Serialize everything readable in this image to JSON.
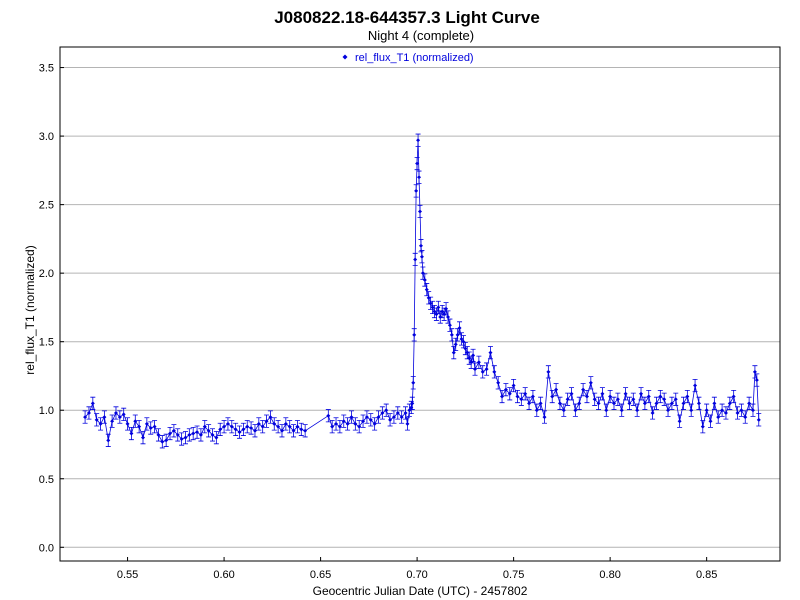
{
  "chart_data": {
    "type": "scatter",
    "title": "J080822.18-644357.3 Light Curve",
    "subtitle": "Night 4 (complete)",
    "xlabel": "Geocentric Julian Date (UTC) - 2457802",
    "ylabel": "rel_flux_T1 (normalized)",
    "xlim": [
      0.515,
      0.888
    ],
    "ylim": [
      -0.1,
      3.65
    ],
    "xticks": [
      "0.55",
      "0.60",
      "0.65",
      "0.70",
      "0.75",
      "0.80",
      "0.85"
    ],
    "yticks": [
      "0.0",
      "0.5",
      "1.0",
      "1.5",
      "2.0",
      "2.5",
      "3.0",
      "3.5"
    ],
    "grid": "horizontal",
    "legend_position": "top-center",
    "series": [
      {
        "name": "rel_flux_T1 (normalized)",
        "color": "#0000dd",
        "marker": "diamond",
        "line": true,
        "error_bar": 0.045,
        "points": [
          [
            0.528,
            0.95
          ],
          [
            0.53,
            0.98
          ],
          [
            0.532,
            1.05
          ],
          [
            0.534,
            0.93
          ],
          [
            0.536,
            0.9
          ],
          [
            0.538,
            0.95
          ],
          [
            0.54,
            0.78
          ],
          [
            0.542,
            0.92
          ],
          [
            0.544,
            0.98
          ],
          [
            0.546,
            0.95
          ],
          [
            0.548,
            0.97
          ],
          [
            0.55,
            0.9
          ],
          [
            0.552,
            0.83
          ],
          [
            0.554,
            0.92
          ],
          [
            0.556,
            0.88
          ],
          [
            0.558,
            0.8
          ],
          [
            0.56,
            0.9
          ],
          [
            0.562,
            0.87
          ],
          [
            0.564,
            0.88
          ],
          [
            0.566,
            0.82
          ],
          [
            0.568,
            0.77
          ],
          [
            0.57,
            0.78
          ],
          [
            0.572,
            0.83
          ],
          [
            0.574,
            0.85
          ],
          [
            0.576,
            0.82
          ],
          [
            0.578,
            0.79
          ],
          [
            0.58,
            0.8
          ],
          [
            0.582,
            0.82
          ],
          [
            0.584,
            0.83
          ],
          [
            0.586,
            0.84
          ],
          [
            0.588,
            0.82
          ],
          [
            0.59,
            0.88
          ],
          [
            0.592,
            0.85
          ],
          [
            0.594,
            0.82
          ],
          [
            0.596,
            0.8
          ],
          [
            0.598,
            0.86
          ],
          [
            0.6,
            0.88
          ],
          [
            0.602,
            0.9
          ],
          [
            0.604,
            0.88
          ],
          [
            0.606,
            0.86
          ],
          [
            0.608,
            0.84
          ],
          [
            0.61,
            0.86
          ],
          [
            0.612,
            0.88
          ],
          [
            0.614,
            0.87
          ],
          [
            0.616,
            0.85
          ],
          [
            0.618,
            0.9
          ],
          [
            0.62,
            0.88
          ],
          [
            0.622,
            0.92
          ],
          [
            0.624,
            0.95
          ],
          [
            0.626,
            0.9
          ],
          [
            0.628,
            0.88
          ],
          [
            0.63,
            0.85
          ],
          [
            0.632,
            0.9
          ],
          [
            0.634,
            0.88
          ],
          [
            0.636,
            0.85
          ],
          [
            0.638,
            0.88
          ],
          [
            0.64,
            0.86
          ],
          [
            0.642,
            0.85
          ],
          [
            0.654,
            0.96
          ],
          [
            0.656,
            0.88
          ],
          [
            0.658,
            0.9
          ],
          [
            0.66,
            0.88
          ],
          [
            0.662,
            0.92
          ],
          [
            0.664,
            0.9
          ],
          [
            0.666,
            0.95
          ],
          [
            0.668,
            0.9
          ],
          [
            0.67,
            0.88
          ],
          [
            0.672,
            0.92
          ],
          [
            0.674,
            0.95
          ],
          [
            0.676,
            0.93
          ],
          [
            0.678,
            0.9
          ],
          [
            0.68,
            0.95
          ],
          [
            0.682,
            0.98
          ],
          [
            0.684,
            1.0
          ],
          [
            0.686,
            0.93
          ],
          [
            0.688,
            0.95
          ],
          [
            0.69,
            0.98
          ],
          [
            0.692,
            0.95
          ],
          [
            0.694,
            0.98
          ],
          [
            0.695,
            0.9
          ],
          [
            0.696,
            1.0
          ],
          [
            0.697,
            1.02
          ],
          [
            0.6975,
            1.05
          ],
          [
            0.698,
            1.2
          ],
          [
            0.6985,
            1.55
          ],
          [
            0.699,
            2.1
          ],
          [
            0.6995,
            2.6
          ],
          [
            0.7,
            2.8
          ],
          [
            0.7005,
            2.97
          ],
          [
            0.701,
            2.7
          ],
          [
            0.7015,
            2.45
          ],
          [
            0.702,
            2.2
          ],
          [
            0.7025,
            2.12
          ],
          [
            0.703,
            2.0
          ],
          [
            0.704,
            1.95
          ],
          [
            0.705,
            1.88
          ],
          [
            0.706,
            1.82
          ],
          [
            0.707,
            1.78
          ],
          [
            0.708,
            1.75
          ],
          [
            0.709,
            1.72
          ],
          [
            0.71,
            1.7
          ],
          [
            0.711,
            1.75
          ],
          [
            0.712,
            1.68
          ],
          [
            0.713,
            1.72
          ],
          [
            0.714,
            1.7
          ],
          [
            0.715,
            1.74
          ],
          [
            0.716,
            1.68
          ],
          [
            0.717,
            1.62
          ],
          [
            0.718,
            1.55
          ],
          [
            0.719,
            1.42
          ],
          [
            0.72,
            1.48
          ],
          [
            0.721,
            1.55
          ],
          [
            0.722,
            1.6
          ],
          [
            0.723,
            1.52
          ],
          [
            0.724,
            1.5
          ],
          [
            0.725,
            1.45
          ],
          [
            0.726,
            1.42
          ],
          [
            0.727,
            1.38
          ],
          [
            0.728,
            1.35
          ],
          [
            0.729,
            1.4
          ],
          [
            0.73,
            1.3
          ],
          [
            0.732,
            1.35
          ],
          [
            0.734,
            1.28
          ],
          [
            0.736,
            1.3
          ],
          [
            0.738,
            1.42
          ],
          [
            0.74,
            1.28
          ],
          [
            0.742,
            1.2
          ],
          [
            0.744,
            1.1
          ],
          [
            0.746,
            1.15
          ],
          [
            0.748,
            1.12
          ],
          [
            0.75,
            1.18
          ],
          [
            0.752,
            1.1
          ],
          [
            0.754,
            1.08
          ],
          [
            0.756,
            1.12
          ],
          [
            0.758,
            1.05
          ],
          [
            0.76,
            1.1
          ],
          [
            0.762,
            1.0
          ],
          [
            0.764,
            1.05
          ],
          [
            0.766,
            0.95
          ],
          [
            0.768,
            1.28
          ],
          [
            0.77,
            1.1
          ],
          [
            0.772,
            1.15
          ],
          [
            0.774,
            1.05
          ],
          [
            0.776,
            1.0
          ],
          [
            0.778,
            1.08
          ],
          [
            0.78,
            1.12
          ],
          [
            0.782,
            1.0
          ],
          [
            0.784,
            1.05
          ],
          [
            0.786,
            1.15
          ],
          [
            0.788,
            1.1
          ],
          [
            0.79,
            1.2
          ],
          [
            0.792,
            1.08
          ],
          [
            0.794,
            1.05
          ],
          [
            0.796,
            1.12
          ],
          [
            0.798,
            1.0
          ],
          [
            0.8,
            1.1
          ],
          [
            0.802,
            1.05
          ],
          [
            0.804,
            1.08
          ],
          [
            0.806,
            1.0
          ],
          [
            0.808,
            1.12
          ],
          [
            0.81,
            1.05
          ],
          [
            0.812,
            1.08
          ],
          [
            0.814,
            1.0
          ],
          [
            0.816,
            1.12
          ],
          [
            0.818,
            1.05
          ],
          [
            0.82,
            1.1
          ],
          [
            0.822,
            0.98
          ],
          [
            0.824,
            1.05
          ],
          [
            0.826,
            1.1
          ],
          [
            0.828,
            1.08
          ],
          [
            0.83,
            1.0
          ],
          [
            0.832,
            1.05
          ],
          [
            0.834,
            1.08
          ],
          [
            0.836,
            0.92
          ],
          [
            0.838,
            1.05
          ],
          [
            0.84,
            1.1
          ],
          [
            0.842,
            1.0
          ],
          [
            0.844,
            1.18
          ],
          [
            0.846,
            1.05
          ],
          [
            0.848,
            0.88
          ],
          [
            0.85,
            1.0
          ],
          [
            0.852,
            0.92
          ],
          [
            0.854,
            1.05
          ],
          [
            0.856,
            0.95
          ],
          [
            0.858,
            1.0
          ],
          [
            0.86,
            0.98
          ],
          [
            0.862,
            1.05
          ],
          [
            0.864,
            1.1
          ],
          [
            0.866,
            0.98
          ],
          [
            0.868,
            1.0
          ],
          [
            0.87,
            0.95
          ],
          [
            0.872,
            1.05
          ],
          [
            0.874,
            1.0
          ],
          [
            0.875,
            1.28
          ],
          [
            0.876,
            1.22
          ],
          [
            0.877,
            0.93
          ]
        ]
      }
    ]
  }
}
